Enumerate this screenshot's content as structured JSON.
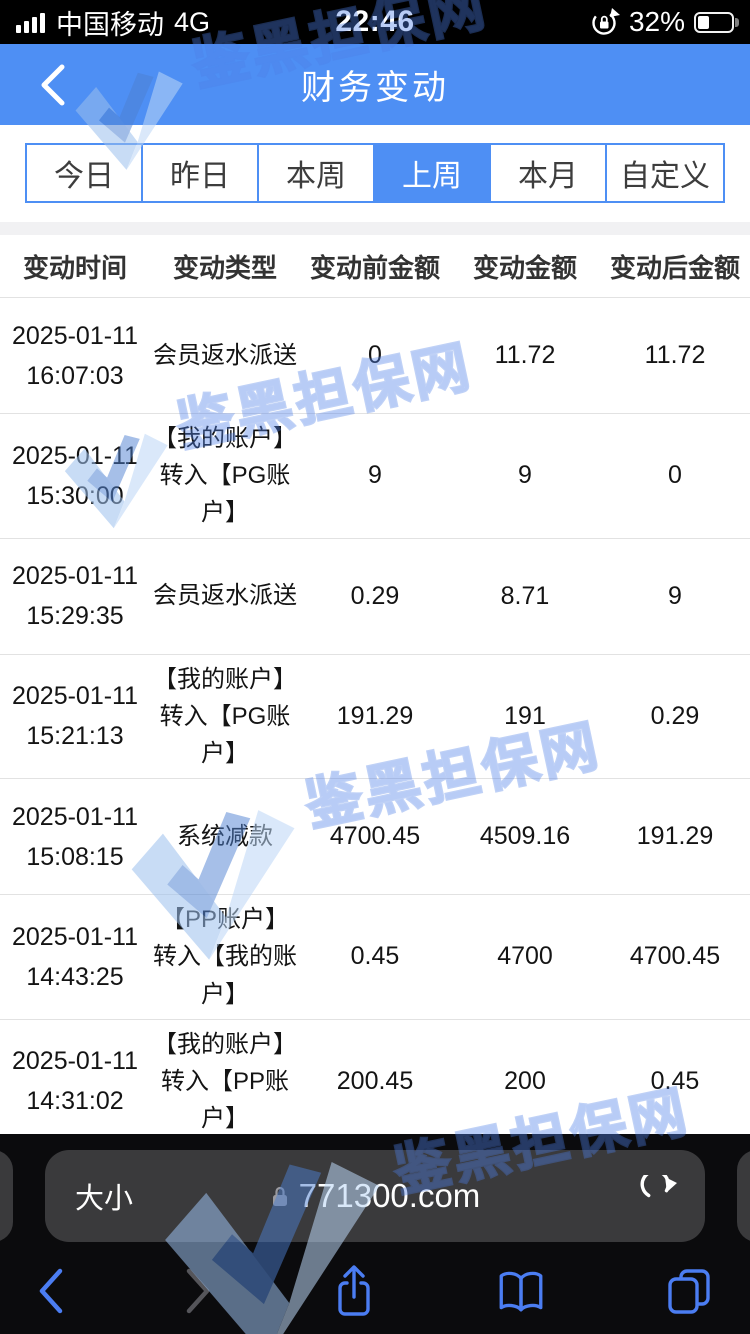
{
  "status_bar": {
    "carrier": "中国移动",
    "network": "4G",
    "time": "22:46",
    "battery_percent": "32%"
  },
  "nav_header": {
    "title": "财务变动"
  },
  "filter_tabs": {
    "items": [
      {
        "label": "今日",
        "selected": false
      },
      {
        "label": "昨日",
        "selected": false
      },
      {
        "label": "本周",
        "selected": false
      },
      {
        "label": "上周",
        "selected": true
      },
      {
        "label": "本月",
        "selected": false
      },
      {
        "label": "自定义",
        "selected": false
      }
    ]
  },
  "table": {
    "headers": [
      "变动时间",
      "变动类型",
      "变动前金额",
      "变动金额",
      "变动后金额"
    ],
    "rows": [
      {
        "date": "2025-01-11",
        "time": "16:07:03",
        "type": "会员返水派送",
        "before": "0",
        "amount": "11.72",
        "after": "11.72"
      },
      {
        "date": "2025-01-11",
        "time": "15:30:00",
        "type": "【我的账户】转入【PG账户】",
        "before": "9",
        "amount": "9",
        "after": "0"
      },
      {
        "date": "2025-01-11",
        "time": "15:29:35",
        "type": "会员返水派送",
        "before": "0.29",
        "amount": "8.71",
        "after": "9"
      },
      {
        "date": "2025-01-11",
        "time": "15:21:13",
        "type": "【我的账户】转入【PG账户】",
        "before": "191.29",
        "amount": "191",
        "after": "0.29"
      },
      {
        "date": "2025-01-11",
        "time": "15:08:15",
        "type": "系统减款",
        "before": "4700.45",
        "amount": "4509.16",
        "after": "191.29"
      },
      {
        "date": "2025-01-11",
        "time": "14:43:25",
        "type": "【PP账户】转入【我的账户】",
        "before": "0.45",
        "amount": "4700",
        "after": "4700.45"
      },
      {
        "date": "2025-01-11",
        "time": "14:31:02",
        "type": "【我的账户】转入【PP账户】",
        "before": "200.45",
        "amount": "200",
        "after": "0.45"
      }
    ]
  },
  "watermark": {
    "text": "鉴黑担保网"
  },
  "browser": {
    "text_size_label": "大小",
    "url": "771300.com"
  },
  "colors": {
    "theme_blue": "#4E8FF4",
    "toolbar_icon_blue": "#4B7DF2",
    "watermark_blue": "#4D7EE7",
    "footer_bg": "#0B0B0D",
    "pill_bg": "#3A3A3C"
  }
}
